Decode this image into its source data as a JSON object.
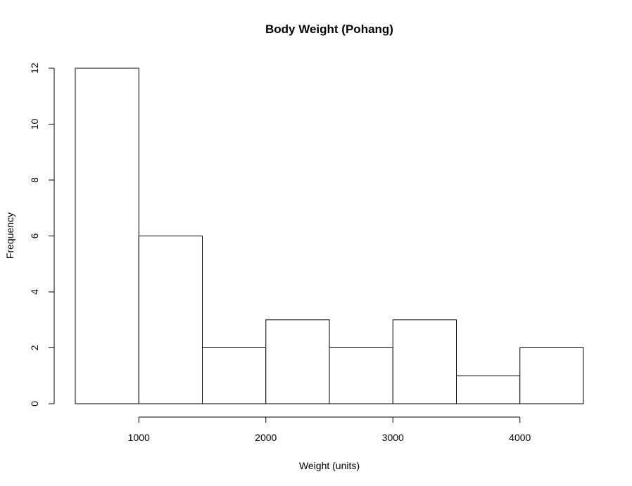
{
  "chart_data": {
    "type": "bar",
    "subtype": "histogram",
    "title": "Body Weight (Pohang)",
    "xlabel": "Weight (units)",
    "ylabel": "Frequency",
    "bins": [
      {
        "start": 500,
        "end": 1000,
        "count": 12
      },
      {
        "start": 1000,
        "end": 1500,
        "count": 6
      },
      {
        "start": 1500,
        "end": 2000,
        "count": 2
      },
      {
        "start": 2000,
        "end": 2500,
        "count": 3
      },
      {
        "start": 2500,
        "end": 3000,
        "count": 2
      },
      {
        "start": 3000,
        "end": 3500,
        "count": 3
      },
      {
        "start": 3500,
        "end": 4000,
        "count": 1
      },
      {
        "start": 4000,
        "end": 4500,
        "count": 2
      }
    ],
    "xlim": [
      500,
      4500
    ],
    "ylim": [
      0,
      12
    ],
    "xticks": [
      1000,
      2000,
      3000,
      4000
    ],
    "yticks": [
      0,
      2,
      4,
      6,
      8,
      10,
      12
    ],
    "grid": false,
    "bar_fill": "#ffffff",
    "bar_stroke": "#000000"
  }
}
